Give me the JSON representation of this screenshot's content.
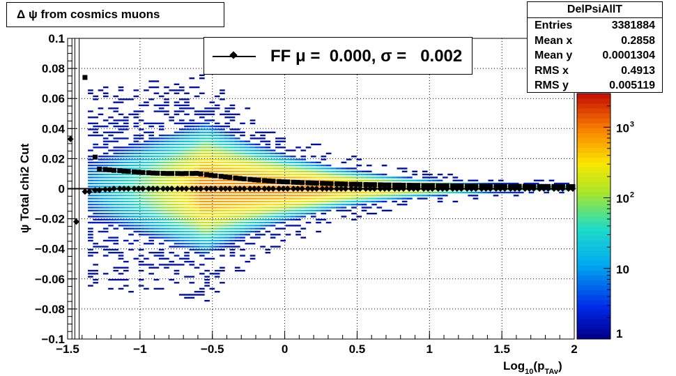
{
  "title_box": {
    "text": "Δ ψ from cosmics muons"
  },
  "stats": {
    "title": "DelPsiAllT",
    "rows": [
      {
        "label": "Entries",
        "value": "3381884"
      },
      {
        "label": "Mean x",
        "value": "0.2858"
      },
      {
        "label": "Mean y",
        "value": "0.0001304"
      },
      {
        "label": "RMS x",
        "value": "0.4913"
      },
      {
        "label": "RMS y",
        "value": "0.005119"
      }
    ]
  },
  "legend": {
    "text": "FF μ =  0.000, σ =   0.002"
  },
  "chart_data": {
    "type": "heatmap",
    "title": "Δ ψ from cosmics muons",
    "ylabel": "ψ  Total chi2 Cut",
    "xlabel": "Log10(pTAv)",
    "xlim": [
      -1.5,
      2
    ],
    "ylim": [
      -0.1,
      0.1
    ],
    "grid": true,
    "colorbar": {
      "scale": "log",
      "range": [
        1,
        3000
      ],
      "tick_labels": [
        "1",
        "10",
        "10^2",
        "10^3"
      ]
    },
    "x_tick_labels": [
      "−1.5",
      "−1",
      "−0.5",
      "0",
      "0.5",
      "1",
      "1.5",
      "2"
    ],
    "y_tick_labels": [
      "0.1",
      "0.08",
      "0.06",
      "0.04",
      "0.02",
      "0",
      "−0.02",
      "−0.04",
      "−0.06",
      "−0.08",
      "−0.1"
    ],
    "series": [
      {
        "name": "FF",
        "marker": "diamond",
        "x": [
          -1.48,
          -1.44,
          -1.38,
          -1.35,
          -1.31,
          -1.28,
          -1.24,
          -1.21,
          -1.18,
          -1.14,
          -1.11,
          -1.08,
          -1.04,
          -1.01,
          -0.98,
          -0.94,
          -0.91,
          -0.88,
          -0.84,
          -0.81,
          -0.78,
          -0.74,
          -0.71,
          -0.68,
          -0.64,
          -0.61,
          -0.58,
          -0.54,
          -0.51,
          -0.48,
          -0.44,
          -0.41,
          -0.38,
          -0.34,
          -0.31,
          -0.28,
          -0.24,
          -0.21,
          -0.18,
          -0.14,
          -0.11,
          -0.08,
          -0.04,
          -0.01,
          0.02,
          0.06,
          0.09,
          0.12,
          0.16,
          0.19,
          0.22,
          0.26,
          0.29,
          0.32,
          0.36,
          0.39,
          0.42,
          0.46,
          0.49,
          0.52,
          0.56,
          0.59,
          0.62,
          0.66,
          0.69,
          0.72,
          0.76,
          0.79,
          0.82,
          0.86,
          0.89,
          0.92,
          0.96,
          0.99,
          1.02,
          1.06,
          1.09,
          1.12,
          1.16,
          1.19,
          1.22,
          1.26,
          1.29,
          1.32,
          1.36,
          1.39,
          1.42,
          1.46,
          1.49,
          1.52,
          1.56,
          1.59,
          1.62,
          1.66,
          1.69,
          1.72,
          1.76,
          1.79,
          1.82,
          1.86,
          1.89,
          1.92,
          1.96,
          1.99
        ],
        "y": [
          0.033,
          -0.022,
          -0.002,
          -0.002,
          -0.001,
          -0.001,
          -0.0005,
          -0.0005,
          0,
          0,
          0,
          0,
          0,
          0,
          0,
          0,
          0,
          0,
          0,
          0,
          0,
          0,
          0,
          0,
          0,
          0,
          0,
          0,
          0,
          0,
          0,
          0,
          0,
          0,
          0,
          0,
          0,
          0,
          0,
          0,
          0,
          0,
          0,
          0,
          0,
          0,
          0,
          0,
          0,
          0,
          0,
          0,
          0,
          0,
          0,
          0,
          0,
          0,
          0,
          0,
          0,
          0,
          0,
          0,
          0,
          0,
          0,
          0,
          0,
          0,
          0,
          0,
          0,
          0,
          0,
          0,
          0,
          0,
          0,
          0,
          0,
          0,
          0,
          0,
          0,
          0,
          0,
          0,
          0,
          0,
          0,
          0,
          0,
          0,
          0,
          0,
          0,
          0,
          0,
          0,
          0,
          0,
          0,
          0
        ]
      },
      {
        "name": "sigma",
        "marker": "square",
        "x": [
          -1.38,
          -1.31,
          -1.28,
          -1.24,
          -1.21,
          -1.18,
          -1.14,
          -1.11,
          -1.08,
          -1.04,
          -1.01,
          -0.98,
          -0.94,
          -0.91,
          -0.88,
          -0.84,
          -0.81,
          -0.78,
          -0.74,
          -0.71,
          -0.68,
          -0.64,
          -0.61,
          -0.58,
          -0.54,
          -0.51,
          -0.48,
          -0.44,
          -0.41,
          -0.38,
          -0.34,
          -0.31,
          -0.28,
          -0.24,
          -0.21,
          -0.18,
          -0.14,
          -0.11,
          -0.08,
          -0.04,
          -0.01,
          0.02,
          0.06,
          0.09,
          0.12,
          0.16,
          0.19,
          0.22,
          0.26,
          0.29,
          0.32,
          0.36,
          0.39,
          0.42,
          0.46,
          0.49,
          0.52,
          0.56,
          0.59,
          0.62,
          0.66,
          0.69,
          0.72,
          0.76,
          0.79,
          0.82,
          0.86,
          0.89,
          0.92,
          0.96,
          0.99,
          1.02,
          1.06,
          1.09,
          1.12,
          1.16,
          1.19,
          1.22,
          1.26,
          1.29,
          1.32,
          1.36,
          1.39,
          1.42,
          1.46,
          1.49,
          1.52,
          1.56,
          1.59,
          1.62,
          1.66,
          1.69,
          1.72,
          1.76,
          1.79,
          1.82,
          1.86,
          1.89,
          1.92,
          1.96,
          1.99
        ],
        "y": [
          0.074,
          0.021,
          0.013,
          0.0128,
          0.0125,
          0.0122,
          0.012,
          0.0117,
          0.0115,
          0.0112,
          0.011,
          0.0108,
          0.0106,
          0.0104,
          0.0103,
          0.0102,
          0.0101,
          0.0101,
          0.0101,
          0.01,
          0.0101,
          0.0101,
          0.0102,
          0.0098,
          0.0094,
          0.009,
          0.0086,
          0.0082,
          0.0078,
          0.0075,
          0.0071,
          0.0068,
          0.0065,
          0.0062,
          0.0059,
          0.0057,
          0.0054,
          0.0052,
          0.005,
          0.0048,
          0.0046,
          0.0045,
          0.0043,
          0.0042,
          0.004,
          0.0039,
          0.0038,
          0.0037,
          0.0036,
          0.0035,
          0.0034,
          0.0033,
          0.0032,
          0.0031,
          0.003,
          0.003,
          0.0029,
          0.0028,
          0.0027,
          0.0027,
          0.0026,
          0.0025,
          0.0025,
          0.0024,
          0.0024,
          0.0023,
          0.0023,
          0.0022,
          0.0022,
          0.0021,
          0.0021,
          0.0021,
          0.002,
          0.002,
          0.002,
          0.0019,
          0.0019,
          0.0019,
          0.0018,
          0.0018,
          0.0018,
          0.0018,
          0.0017,
          0.0017,
          0.0017,
          0.0017,
          0.0016,
          0.0016,
          0.0016,
          0.0016,
          0.0016,
          0.0015,
          0.0015,
          0.0015,
          0.0015,
          0.0015,
          0.0015,
          0.0014,
          0.0014,
          0.0014,
          0.0014
        ]
      }
    ]
  }
}
